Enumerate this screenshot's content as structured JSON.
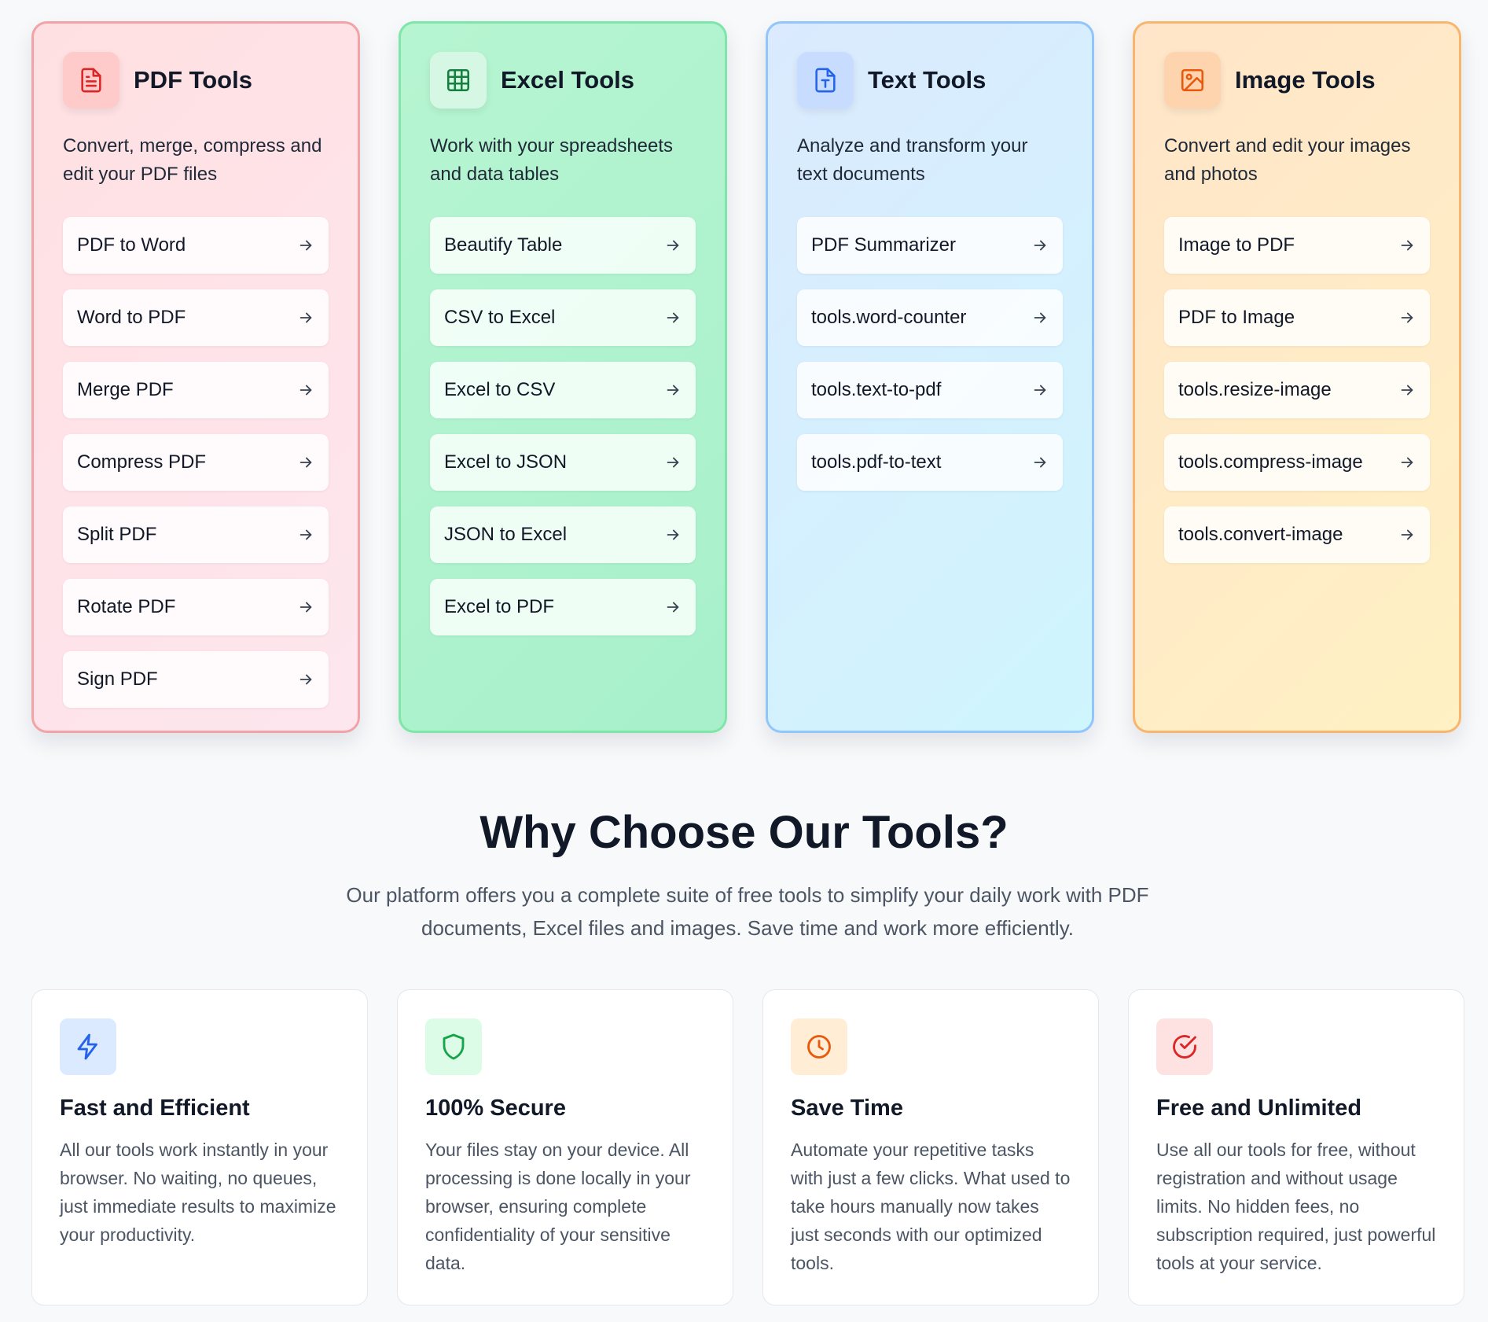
{
  "categories": [
    {
      "id": "pdf",
      "title": "PDF Tools",
      "icon": "document-icon",
      "accent": "#dc2626",
      "description": "Convert, merge, compress and edit your PDF files",
      "tools": [
        "PDF to Word",
        "Word to PDF",
        "Merge PDF",
        "Compress PDF",
        "Split PDF",
        "Rotate PDF",
        "Sign PDF"
      ]
    },
    {
      "id": "excel",
      "title": "Excel Tools",
      "icon": "table-icon",
      "accent": "#15803d",
      "description": "Work with your spreadsheets and data tables",
      "tools": [
        "Beautify Table",
        "CSV to Excel",
        "Excel to CSV",
        "Excel to JSON",
        "JSON to Excel",
        "Excel to PDF"
      ]
    },
    {
      "id": "text",
      "title": "Text Tools",
      "icon": "text-document-icon",
      "accent": "#2563eb",
      "description": "Analyze and transform your text documents",
      "tools": [
        "PDF Summarizer",
        "tools.word-counter",
        "tools.text-to-pdf",
        "tools.pdf-to-text"
      ]
    },
    {
      "id": "image",
      "title": "Image Tools",
      "icon": "image-icon",
      "accent": "#ea580c",
      "description": "Convert and edit your images and photos",
      "tools": [
        "Image to PDF",
        "PDF to Image",
        "tools.resize-image",
        "tools.compress-image",
        "tools.convert-image"
      ]
    }
  ],
  "why": {
    "title": "Why Choose Our Tools?",
    "subtitle": "Our platform offers you a complete suite of free tools to simplify your daily work with PDF documents, Excel files and images. Save time and work more efficiently."
  },
  "features": [
    {
      "icon": "lightning-icon",
      "icon_bg": "#dbeafe",
      "icon_color": "#2563eb",
      "title": "Fast and Efficient",
      "text": "All our tools work instantly in your browser. No waiting, no queues, just immediate results to maximize your productivity."
    },
    {
      "icon": "shield-icon",
      "icon_bg": "#dcfce7",
      "icon_color": "#16a34a",
      "title": "100% Secure",
      "text": "Your files stay on your device. All processing is done locally in your browser, ensuring complete confidentiality of your sensitive data."
    },
    {
      "icon": "clock-icon",
      "icon_bg": "#ffedd5",
      "icon_color": "#ea580c",
      "title": "Save Time",
      "text": "Automate your repetitive tasks with just a few clicks. What used to take hours manually now takes just seconds with our optimized tools."
    },
    {
      "icon": "check-circle-icon",
      "icon_bg": "#fee2e2",
      "icon_color": "#dc2626",
      "title": "Free and Unlimited",
      "text": "Use all our tools for free, without registration and without usage limits. No hidden fees, no subscription required, just powerful tools at your service."
    }
  ]
}
